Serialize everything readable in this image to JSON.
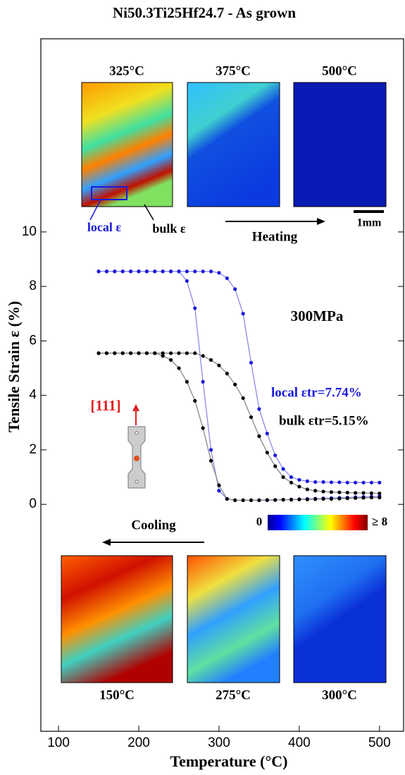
{
  "chart_data": {
    "type": "line",
    "title": "Ni50.3Ti25Hf24.7 - As grown",
    "x_label": "Temperature (°C)",
    "y_label": "Tensile Strain ε (%)",
    "xlim": [
      78,
      530
    ],
    "ylim": [
      -8.33,
      17.09
    ],
    "xticks": [
      100,
      200,
      300,
      400,
      500
    ],
    "yticks": [
      0,
      2,
      4,
      6,
      8,
      10
    ],
    "x": [
      150,
      160,
      170,
      180,
      190,
      200,
      210,
      220,
      230,
      240,
      250,
      260,
      270,
      280,
      290,
      300,
      310,
      320,
      330,
      340,
      350,
      360,
      370,
      380,
      390,
      400,
      410,
      420,
      430,
      440,
      450,
      460,
      470,
      480,
      490,
      500
    ],
    "series": [
      {
        "color": "#1a1adc",
        "values": [
          8.55,
          8.55,
          8.55,
          8.55,
          8.55,
          8.55,
          8.55,
          8.55,
          8.55,
          8.55,
          8.55,
          8.2,
          7.2,
          4.5,
          2.0,
          0.5,
          0.2,
          0.15,
          0.15,
          0.15,
          0.15,
          0.15,
          0.16,
          0.17,
          0.18,
          0.19,
          0.2,
          0.21,
          0.22,
          0.23,
          0.24,
          0.25,
          0.26,
          0.27,
          0.28,
          0.3
        ]
      },
      {
        "color": "#1a1adc",
        "values": [
          8.55,
          8.55,
          8.55,
          8.55,
          8.55,
          8.55,
          8.55,
          8.55,
          8.55,
          8.55,
          8.55,
          8.55,
          8.55,
          8.55,
          8.55,
          8.5,
          8.3,
          7.9,
          7.0,
          5.2,
          3.5,
          2.6,
          1.8,
          1.3,
          1.0,
          0.9,
          0.85,
          0.82,
          0.82,
          0.81,
          0.81,
          0.8,
          0.8,
          0.8,
          0.8,
          0.8
        ]
      },
      {
        "color": "#000000",
        "values": [
          5.55,
          5.55,
          5.55,
          5.55,
          5.55,
          5.55,
          5.55,
          5.55,
          5.45,
          5.3,
          5.0,
          4.5,
          3.8,
          2.8,
          1.6,
          0.7,
          0.2,
          0.15,
          0.15,
          0.15,
          0.15,
          0.16,
          0.16,
          0.17,
          0.17,
          0.18,
          0.18,
          0.19,
          0.2,
          0.2,
          0.21,
          0.22,
          0.23,
          0.24,
          0.25,
          0.25
        ]
      },
      {
        "color": "#000000",
        "values": [
          5.55,
          5.55,
          5.55,
          5.55,
          5.55,
          5.55,
          5.55,
          5.55,
          5.55,
          5.55,
          5.55,
          5.55,
          5.55,
          5.45,
          5.3,
          5.1,
          4.8,
          4.4,
          3.9,
          3.2,
          2.5,
          1.9,
          1.4,
          1.0,
          0.8,
          0.65,
          0.55,
          0.5,
          0.47,
          0.45,
          0.44,
          0.43,
          0.42,
          0.42,
          0.41,
          0.4
        ]
      }
    ],
    "annotations": {
      "stress": "300MPa",
      "local_strain": "local εtr=7.74%",
      "bulk_strain": "bulk εtr=5.15%",
      "direction": "[111]",
      "heating": "Heating",
      "cooling": "Cooling",
      "local_marker": "local ε",
      "bulk_marker": "bulk ε",
      "scale_bar": "1mm",
      "colorbar_min": "0",
      "colorbar_max": "≥ 8"
    },
    "maps_top": [
      "325°C",
      "375°C",
      "500°C"
    ],
    "maps_bottom": [
      "150°C",
      "275°C",
      "300°C"
    ]
  }
}
